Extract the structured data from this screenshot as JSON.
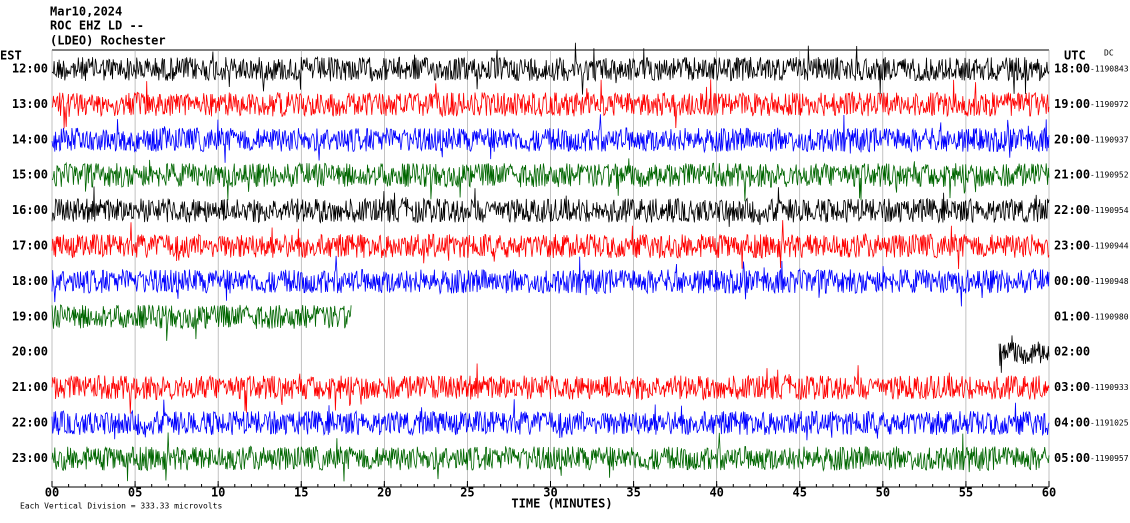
{
  "chart_data": {
    "type": "helicorder",
    "title_lines": [
      "Mar10,2024",
      "ROC EHZ LD --",
      "(LDEO) Rochester"
    ],
    "left_zone": "EST",
    "right_zone": "UTC",
    "dc_heading": "DC",
    "xlabel": "TIME (MINUTES)",
    "footnote": "Each Vertical Division =  333.33 microvolts",
    "xlim": [
      0,
      60
    ],
    "xticks": [
      {
        "value": 0,
        "label": "00"
      },
      {
        "value": 5,
        "label": "05"
      },
      10,
      15,
      20,
      25,
      30,
      35,
      40,
      45,
      50,
      55,
      60
    ],
    "colors": [
      "#000000",
      "#ff0000",
      "#0000ff",
      "#006600"
    ],
    "rows": [
      {
        "left": "12:00",
        "right": "18:00",
        "dc": "-1190843"
      },
      {
        "left": "13:00",
        "right": "19:00",
        "dc": "-1190972"
      },
      {
        "left": "14:00",
        "right": "20:00",
        "dc": "-1190937"
      },
      {
        "left": "15:00",
        "right": "21:00",
        "dc": "-1190952"
      },
      {
        "left": "16:00",
        "right": "22:00",
        "dc": "-1190954"
      },
      {
        "left": "17:00",
        "right": "23:00",
        "dc": "-1190944"
      },
      {
        "left": "18:00",
        "right": "00:00",
        "dc": "-1190948"
      },
      {
        "left": "19:00",
        "right": "01:00",
        "dc": "-1190980"
      },
      {
        "left": "20:00",
        "right": "02:00",
        "dc": null
      },
      {
        "left": "21:00",
        "right": "03:00",
        "dc": "-1190933"
      },
      {
        "left": "22:00",
        "right": "04:00",
        "dc": "-1191025"
      },
      {
        "left": "23:00",
        "right": "05:00",
        "dc": "-1190957"
      }
    ]
  }
}
